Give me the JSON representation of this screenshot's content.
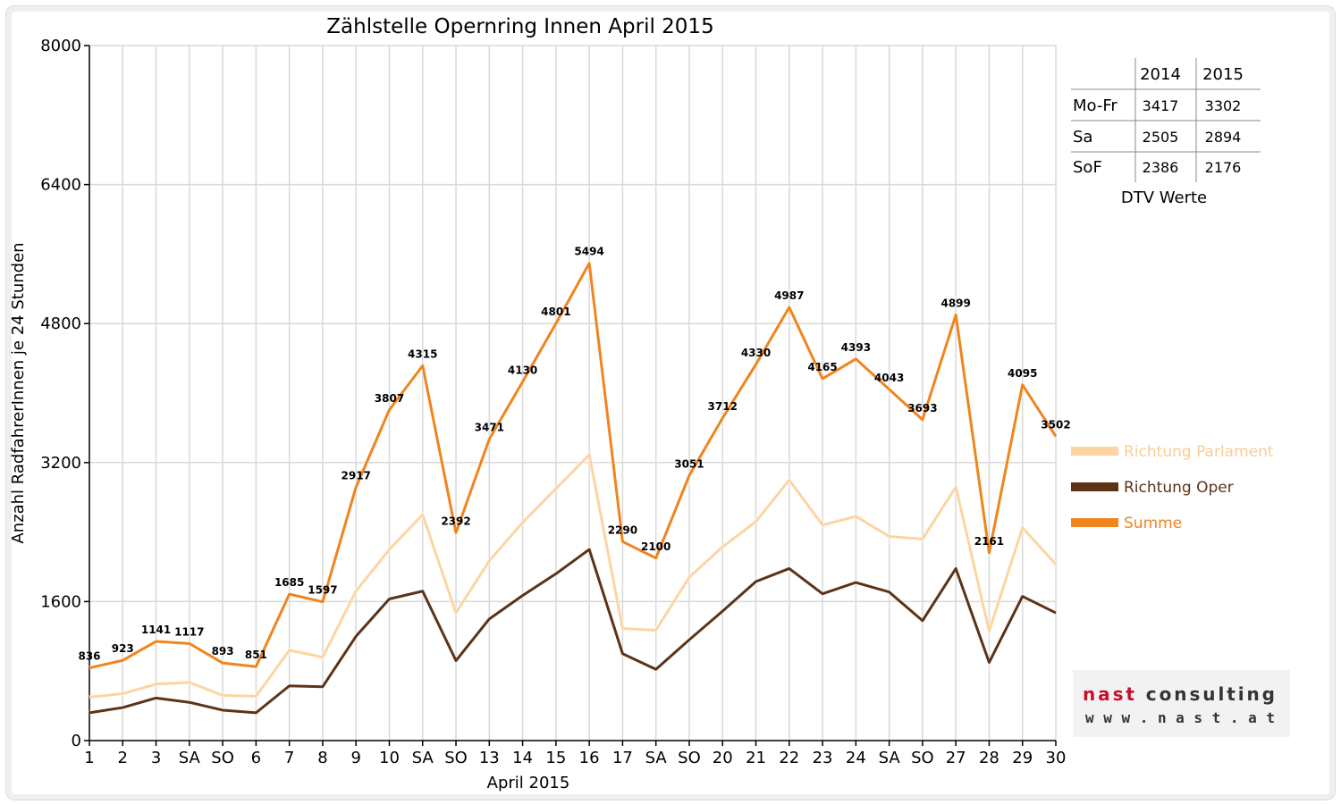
{
  "chart_data": {
    "type": "line",
    "title": "Zählstelle Opernring Innen April 2015",
    "xlabel": "April 2015",
    "ylabel": "Anzahl RadfahrerInnen je 24 Stunden",
    "ylim": [
      0,
      8000
    ],
    "yticks": [
      "0",
      "1600",
      "3200",
      "4800",
      "6400",
      "8000"
    ],
    "grid": true,
    "legend_position": "right",
    "categories": [
      "1",
      "2",
      "3",
      "SA",
      "SO",
      "6",
      "7",
      "8",
      "9",
      "10",
      "SA",
      "SO",
      "13",
      "14",
      "15",
      "16",
      "17",
      "SA",
      "SO",
      "20",
      "21",
      "22",
      "23",
      "24",
      "SA",
      "SO",
      "27",
      "28",
      "29",
      "30"
    ],
    "holiday_color": "#ff0000",
    "holiday_indices": [
      4,
      5,
      11,
      18,
      25
    ],
    "series": [
      {
        "name": "Richtung Parlament",
        "color": "#fcd5a3",
        "values": [
          500,
          540,
          650,
          670,
          520,
          510,
          1040,
          960,
          1720,
          2200,
          2600,
          1470,
          2070,
          2510,
          2900,
          3290,
          1290,
          1270,
          1880,
          2230,
          2520,
          3000,
          2480,
          2580,
          2350,
          2320,
          2920,
          1260,
          2450,
          2030
        ]
      },
      {
        "name": "Richtung Oper",
        "color": "#5c3317",
        "values": [
          320,
          380,
          490,
          440,
          350,
          320,
          630,
          620,
          1200,
          1630,
          1720,
          920,
          1400,
          1670,
          1920,
          2200,
          1000,
          820,
          1160,
          1490,
          1830,
          1980,
          1690,
          1820,
          1710,
          1380,
          1980,
          900,
          1660,
          1470
        ]
      },
      {
        "name": "Summe",
        "color": "#f0841e",
        "values": [
          836,
          923,
          1141,
          1117,
          893,
          851,
          1685,
          1597,
          2917,
          3807,
          4315,
          2392,
          3471,
          4130,
          4801,
          5494,
          2290,
          2100,
          3051,
          3712,
          4330,
          4987,
          4165,
          4393,
          4043,
          3693,
          4899,
          2161,
          4095,
          3502
        ],
        "labels": [
          "836",
          "923",
          "1141",
          "1117",
          "893",
          "851",
          "1685",
          "1597",
          "2917",
          "3807",
          "4315",
          "2392",
          "3471",
          "4130",
          "4801",
          "5494",
          "2290",
          "2100",
          "3051",
          "3712",
          "4330",
          "4987",
          "4165",
          "4393",
          "4043",
          "3693",
          "4899",
          "2161",
          "4095",
          "3502"
        ]
      }
    ]
  },
  "dtv_table": {
    "caption": "DTV Werte",
    "columns": [
      "2014",
      "2015"
    ],
    "rows": [
      {
        "label": "Mo-Fr",
        "v2014": "3417",
        "v2015": "3302"
      },
      {
        "label": "Sa",
        "v2014": "2505",
        "v2015": "2894"
      },
      {
        "label": "SoF",
        "v2014": "2386",
        "v2015": "2176"
      }
    ]
  },
  "logo": {
    "text": "nast consulting",
    "url_text": "w w w . n a s t . a t"
  }
}
